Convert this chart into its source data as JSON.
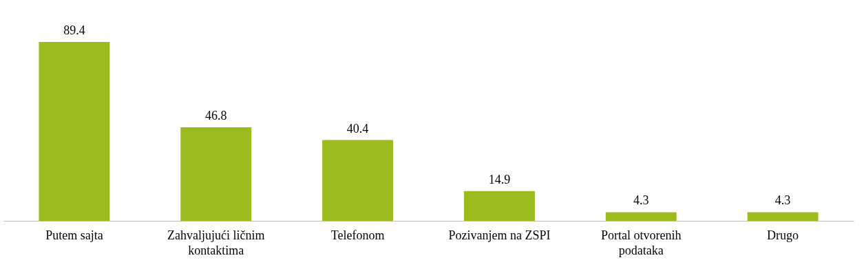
{
  "chart_data": {
    "type": "bar",
    "categories": [
      "Putem sajta",
      "Zahvaljujući ličnim kontaktima",
      "Telefonom",
      "Pozivanjem na ZSPI",
      "Portal otvorenih podataka",
      "Drugo"
    ],
    "values": [
      89.4,
      46.8,
      40.4,
      14.9,
      4.3,
      4.3
    ],
    "color": "#9cbb1f",
    "data_labels": true
  }
}
